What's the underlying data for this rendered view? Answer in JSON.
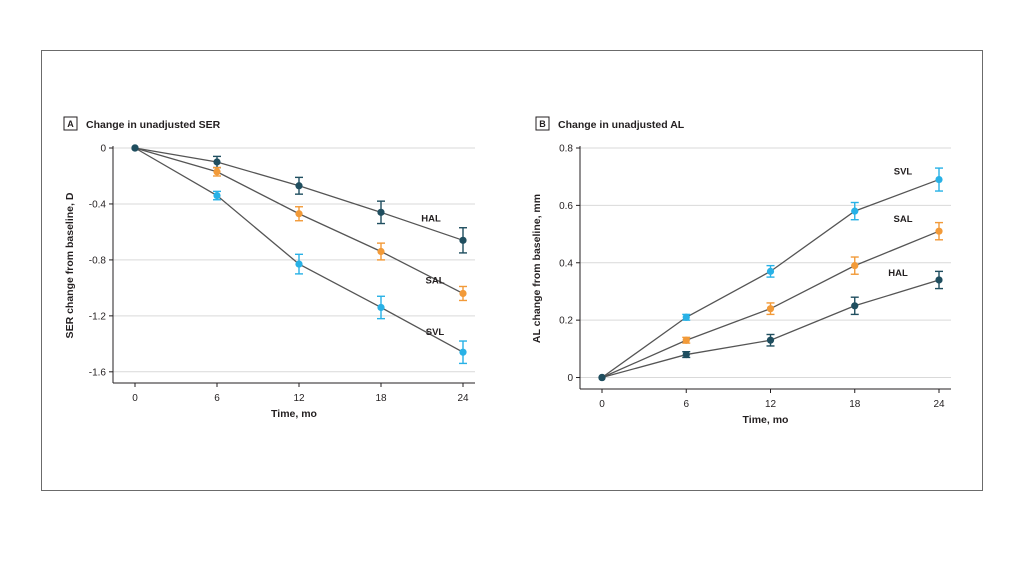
{
  "colors": {
    "HAL": "#1f4e5f",
    "SAL": "#f29a38",
    "SVL": "#28b1e6",
    "axis": "#231f20",
    "grid": "#d9d9d9",
    "line": "#555555"
  },
  "chart_data": [
    {
      "type": "line",
      "panel": "A",
      "title": "Change in unadjusted SER",
      "xlabel": "Time, mo",
      "ylabel": "SER change from baseline, D",
      "x": [
        0,
        6,
        12,
        18,
        24
      ],
      "x_ticks": [
        "0",
        "6",
        "12",
        "18",
        "24"
      ],
      "ylim": [
        -1.68,
        0
      ],
      "y_ticks": [
        "0",
        "-0.4",
        "-0.8",
        "-1.2",
        "-1.6"
      ],
      "grid": "horizontal",
      "series": [
        {
          "name": "HAL",
          "values": [
            0,
            -0.1,
            -0.27,
            -0.46,
            -0.66
          ],
          "errors": [
            0,
            0.04,
            0.06,
            0.08,
            0.09
          ]
        },
        {
          "name": "SAL",
          "values": [
            0,
            -0.17,
            -0.47,
            -0.74,
            -1.04
          ],
          "errors": [
            0,
            0.03,
            0.05,
            0.06,
            0.05
          ]
        },
        {
          "name": "SVL",
          "values": [
            0,
            -0.34,
            -0.83,
            -1.14,
            -1.46
          ],
          "errors": [
            0,
            0.03,
            0.07,
            0.08,
            0.08
          ]
        }
      ]
    },
    {
      "type": "line",
      "panel": "B",
      "title": "Change in unadjusted AL",
      "xlabel": "Time, mo",
      "ylabel": "AL change from baseline, mm",
      "x": [
        0,
        6,
        12,
        18,
        24
      ],
      "x_ticks": [
        "0",
        "6",
        "12",
        "18",
        "24"
      ],
      "ylim": [
        -0.04,
        0.8
      ],
      "y_ticks": [
        "0",
        "0.2",
        "0.4",
        "0.6",
        "0.8"
      ],
      "grid": "horizontal",
      "series": [
        {
          "name": "HAL",
          "values": [
            0,
            0.08,
            0.13,
            0.25,
            0.34
          ],
          "errors": [
            0,
            0.01,
            0.02,
            0.03,
            0.03
          ]
        },
        {
          "name": "SAL",
          "values": [
            0,
            0.13,
            0.24,
            0.39,
            0.51
          ],
          "errors": [
            0,
            0.01,
            0.02,
            0.03,
            0.03
          ]
        },
        {
          "name": "SVL",
          "values": [
            0,
            0.21,
            0.37,
            0.58,
            0.69
          ],
          "errors": [
            0,
            0.01,
            0.02,
            0.03,
            0.04
          ]
        }
      ]
    }
  ]
}
